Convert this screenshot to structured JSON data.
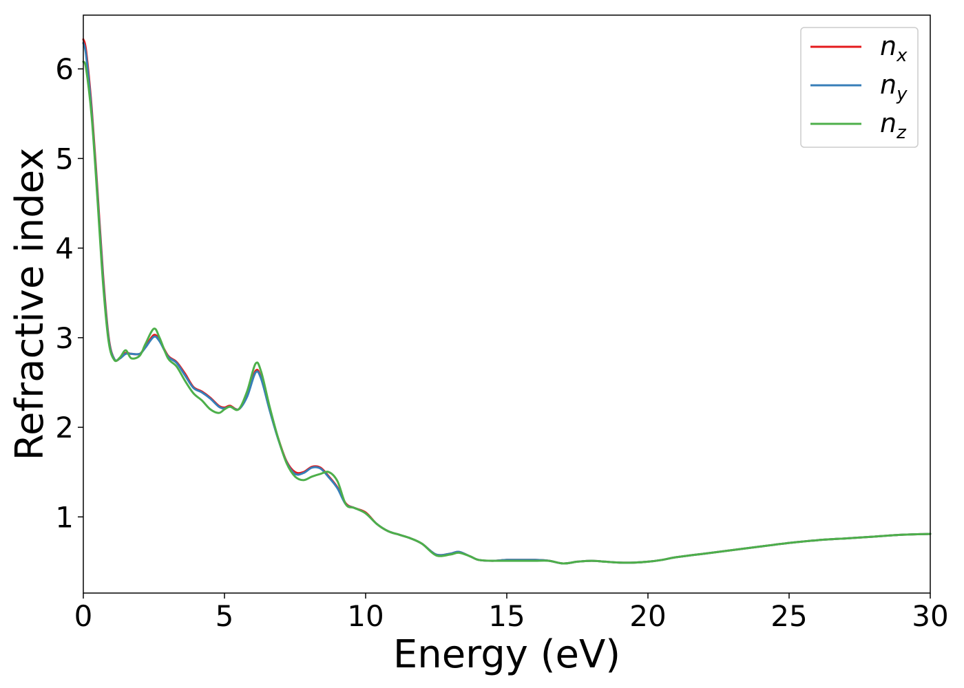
{
  "chart_data": {
    "type": "line",
    "xlabel": "Energy (eV)",
    "ylabel": "Refractive index",
    "xlim": [
      0,
      30
    ],
    "ylim": [
      0.15,
      6.6
    ],
    "xticks": [
      0,
      5,
      10,
      15,
      20,
      25,
      30
    ],
    "xtick_labels": [
      "0",
      "5",
      "10",
      "15",
      "20",
      "25",
      "30"
    ],
    "yticks": [
      1,
      2,
      3,
      4,
      5,
      6
    ],
    "ytick_labels": [
      "1",
      "2",
      "3",
      "4",
      "5",
      "6"
    ],
    "grid": false,
    "legend": {
      "placement": "top-right"
    },
    "series": [
      {
        "name": "n",
        "name_subscript": "x",
        "color": "#e41a1c",
        "x": [
          0,
          0.1,
          0.3,
          0.5,
          0.7,
          0.9,
          1.1,
          1.3,
          1.5,
          1.7,
          2.0,
          2.2,
          2.5,
          2.7,
          3.0,
          3.3,
          3.6,
          3.9,
          4.2,
          4.5,
          4.8,
          5.0,
          5.2,
          5.5,
          5.8,
          6.1,
          6.3,
          6.6,
          6.9,
          7.2,
          7.5,
          7.8,
          8.1,
          8.4,
          8.7,
          9.0,
          9.3,
          9.6,
          10.0,
          10.4,
          10.8,
          11.2,
          11.6,
          12.0,
          12.5,
          13.0,
          13.3,
          13.7,
          14.0,
          14.5,
          15.0,
          15.5,
          16.0,
          16.5,
          17.0,
          17.5,
          18.0,
          18.5,
          19.0,
          19.5,
          20.0,
          20.5,
          21.0,
          22.0,
          23.0,
          24.0,
          25.0,
          26.0,
          27.0,
          28.0,
          29.0,
          30.0
        ],
        "y": [
          6.33,
          6.2,
          5.55,
          4.65,
          3.7,
          3.0,
          2.76,
          2.77,
          2.83,
          2.82,
          2.82,
          2.9,
          3.03,
          2.97,
          2.8,
          2.73,
          2.6,
          2.45,
          2.4,
          2.33,
          2.24,
          2.22,
          2.24,
          2.2,
          2.35,
          2.63,
          2.55,
          2.2,
          1.88,
          1.62,
          1.5,
          1.5,
          1.56,
          1.55,
          1.45,
          1.33,
          1.15,
          1.1,
          1.05,
          0.92,
          0.84,
          0.8,
          0.76,
          0.7,
          0.58,
          0.59,
          0.61,
          0.56,
          0.52,
          0.51,
          0.52,
          0.52,
          0.52,
          0.51,
          0.48,
          0.5,
          0.51,
          0.5,
          0.49,
          0.49,
          0.5,
          0.52,
          0.55,
          0.59,
          0.63,
          0.67,
          0.71,
          0.74,
          0.76,
          0.78,
          0.8,
          0.81
        ]
      },
      {
        "name": "n",
        "name_subscript": "y",
        "color": "#377eb8",
        "x": [
          0,
          0.1,
          0.3,
          0.5,
          0.7,
          0.9,
          1.1,
          1.3,
          1.5,
          1.7,
          2.0,
          2.2,
          2.5,
          2.7,
          3.0,
          3.3,
          3.6,
          3.9,
          4.2,
          4.5,
          4.8,
          5.0,
          5.2,
          5.5,
          5.8,
          6.1,
          6.3,
          6.6,
          6.9,
          7.2,
          7.5,
          7.8,
          8.1,
          8.4,
          8.7,
          9.0,
          9.3,
          9.6,
          10.0,
          10.4,
          10.8,
          11.2,
          11.6,
          12.0,
          12.5,
          13.0,
          13.3,
          13.7,
          14.0,
          14.5,
          15.0,
          15.5,
          16.0,
          16.5,
          17.0,
          17.5,
          18.0,
          18.5,
          19.0,
          19.5,
          20.0,
          20.5,
          21.0,
          22.0,
          23.0,
          24.0,
          25.0,
          26.0,
          27.0,
          28.0,
          29.0,
          30.0
        ],
        "y": [
          6.29,
          6.15,
          5.5,
          4.6,
          3.65,
          2.98,
          2.76,
          2.77,
          2.82,
          2.82,
          2.82,
          2.89,
          3.01,
          2.96,
          2.79,
          2.72,
          2.58,
          2.44,
          2.39,
          2.32,
          2.23,
          2.21,
          2.23,
          2.2,
          2.34,
          2.61,
          2.54,
          2.19,
          1.87,
          1.61,
          1.48,
          1.49,
          1.55,
          1.54,
          1.44,
          1.32,
          1.14,
          1.1,
          1.04,
          0.92,
          0.84,
          0.8,
          0.76,
          0.7,
          0.58,
          0.59,
          0.61,
          0.56,
          0.52,
          0.51,
          0.52,
          0.52,
          0.52,
          0.51,
          0.48,
          0.5,
          0.51,
          0.5,
          0.49,
          0.49,
          0.5,
          0.52,
          0.55,
          0.59,
          0.63,
          0.67,
          0.71,
          0.74,
          0.76,
          0.78,
          0.8,
          0.81
        ]
      },
      {
        "name": "n",
        "name_subscript": "z",
        "color": "#4daf4a",
        "x": [
          0,
          0.1,
          0.3,
          0.5,
          0.7,
          0.9,
          1.1,
          1.3,
          1.5,
          1.7,
          2.0,
          2.2,
          2.5,
          2.7,
          3.0,
          3.3,
          3.6,
          3.9,
          4.2,
          4.5,
          4.8,
          5.0,
          5.2,
          5.5,
          5.8,
          6.1,
          6.3,
          6.6,
          6.9,
          7.2,
          7.5,
          7.8,
          8.1,
          8.4,
          8.7,
          9.0,
          9.3,
          9.6,
          10.0,
          10.4,
          10.8,
          11.2,
          11.6,
          12.0,
          12.5,
          13.0,
          13.3,
          13.7,
          14.0,
          14.5,
          15.0,
          15.5,
          16.0,
          16.5,
          17.0,
          17.5,
          18.0,
          18.5,
          19.0,
          19.5,
          20.0,
          20.5,
          21.0,
          22.0,
          23.0,
          24.0,
          25.0,
          26.0,
          27.0,
          28.0,
          29.0,
          30.0
        ],
        "y": [
          6.08,
          6.0,
          5.45,
          4.55,
          3.6,
          2.95,
          2.75,
          2.78,
          2.86,
          2.77,
          2.8,
          2.93,
          3.1,
          3.0,
          2.77,
          2.68,
          2.52,
          2.38,
          2.3,
          2.2,
          2.16,
          2.2,
          2.23,
          2.2,
          2.4,
          2.71,
          2.62,
          2.23,
          1.88,
          1.6,
          1.45,
          1.41,
          1.45,
          1.48,
          1.5,
          1.4,
          1.14,
          1.1,
          1.04,
          0.92,
          0.84,
          0.8,
          0.76,
          0.7,
          0.57,
          0.58,
          0.6,
          0.56,
          0.52,
          0.51,
          0.51,
          0.51,
          0.51,
          0.51,
          0.48,
          0.5,
          0.51,
          0.5,
          0.49,
          0.49,
          0.5,
          0.52,
          0.55,
          0.59,
          0.63,
          0.67,
          0.71,
          0.74,
          0.76,
          0.78,
          0.8,
          0.81
        ]
      }
    ]
  }
}
